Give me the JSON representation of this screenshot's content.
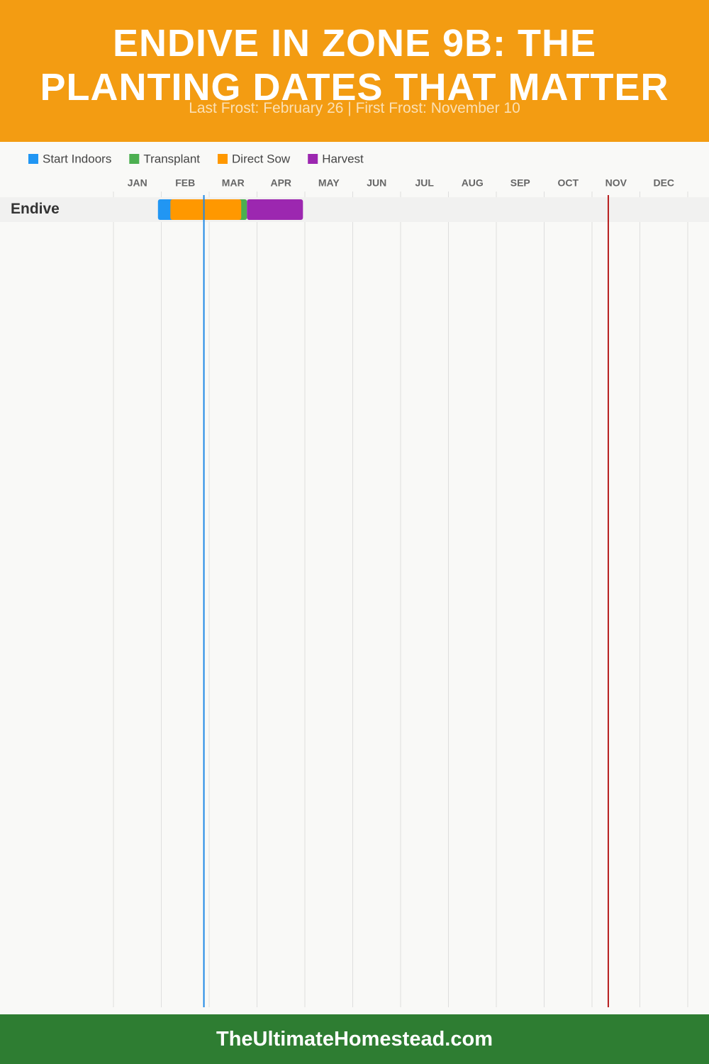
{
  "chart_data": {
    "type": "gantt",
    "title": "ENDIVE IN ZONE 9B: THE PLANTING DATES THAT MATTER",
    "subtitle": "Last Frost: February 26 | First Frost: November 10",
    "months": [
      "JAN",
      "FEB",
      "MAR",
      "APR",
      "MAY",
      "JUN",
      "JUL",
      "AUG",
      "SEP",
      "OCT",
      "NOV",
      "DEC"
    ],
    "xlim": [
      0,
      12
    ],
    "rows": [
      "Endive"
    ],
    "series": [
      {
        "name": "Start Indoors",
        "color": "#2196f3",
        "start": [
          0.93
        ],
        "end": [
          1.3
        ]
      },
      {
        "name": "Transplant",
        "color": "#4caf50",
        "start": [
          2.5
        ],
        "end": [
          2.79
        ]
      },
      {
        "name": "Direct Sow",
        "color": "#ff9800",
        "start": [
          1.19
        ],
        "end": [
          2.67
        ]
      },
      {
        "name": "Harvest",
        "color": "#9c27b0",
        "start": [
          2.79
        ],
        "end": [
          3.96
        ]
      }
    ],
    "markers": [
      {
        "value": 1.89,
        "color": "#1e88e5"
      },
      {
        "value": 10.34,
        "color": "#b71c1c"
      }
    ]
  },
  "footer": "TheUltimateHomestead.com"
}
